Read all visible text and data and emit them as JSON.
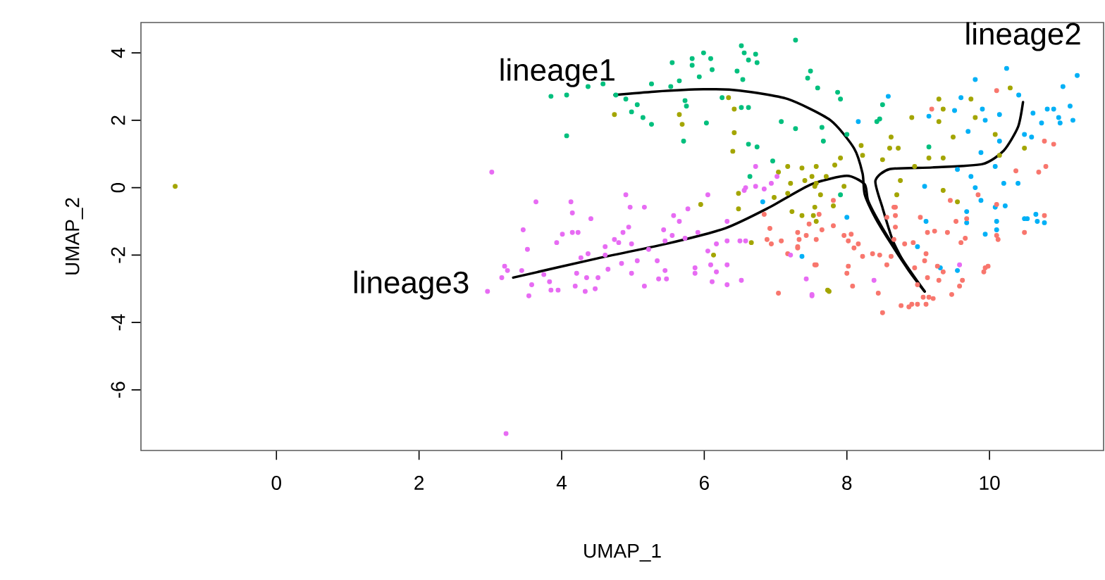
{
  "chart_data": {
    "type": "scatter",
    "xlabel": "UMAP_1",
    "ylabel": "UMAP_2",
    "xlim": [
      -1.9,
      11.6
    ],
    "ylim": [
      -7.8,
      4.9
    ],
    "xticks": [
      0,
      2,
      4,
      6,
      8,
      10
    ],
    "yticks": [
      -6,
      -4,
      -2,
      0,
      2,
      4
    ],
    "series": [
      {
        "marker": "circle",
        "color": "#00BF7D",
        "x": [
          3.85,
          4.07,
          4.37,
          4.58,
          4.76,
          4.9,
          5.06,
          5.14,
          5.26,
          4.98,
          5.26,
          5.53,
          5.65,
          5.55,
          5.83,
          5.83,
          5.99,
          6.09,
          6.11,
          5.93,
          5.73,
          5.75,
          6.03,
          5.71,
          4.07,
          6.25,
          6.52,
          6.56,
          6.62,
          6.72,
          6.74,
          6.46,
          6.54,
          6.52,
          6.62,
          7.08,
          7.28,
          6.62,
          6.74,
          6.96,
          7.28,
          7.49,
          7.45,
          7.59,
          7.65,
          6.64,
          7.87,
          7.91,
          8.5,
          8.46,
          8.42,
          8.0,
          7.67,
          9.15,
          7.91
        ],
        "values": [
          2.71,
          2.75,
          3.0,
          3.08,
          2.75,
          2.63,
          2.46,
          2.08,
          1.88,
          2.25,
          3.08,
          3.0,
          3.17,
          3.71,
          3.83,
          3.63,
          4.0,
          3.83,
          3.5,
          3.29,
          2.58,
          2.42,
          1.92,
          1.38,
          1.54,
          2.67,
          4.21,
          4.0,
          3.79,
          3.96,
          3.71,
          3.46,
          3.21,
          2.38,
          2.38,
          1.96,
          1.75,
          1.29,
          1.21,
          0.79,
          4.38,
          3.46,
          3.25,
          2.96,
          1.79,
          0.33,
          2.83,
          2.63,
          2.46,
          2.04,
          1.96,
          1.58,
          1.38,
          1.21,
          -0.21
        ]
      },
      {
        "marker": "circle",
        "color": "#A3A500",
        "x": [
          4.74,
          5.65,
          5.69,
          6.42,
          6.4,
          6.34,
          6.42,
          7.17,
          7.37,
          7.57,
          7.04,
          7.51,
          5.95,
          6.13,
          6.48,
          6.48,
          6.66,
          6.98,
          7.21,
          7.17,
          7.23,
          7.41,
          7.55,
          7.37,
          7.53,
          7.63,
          7.73,
          7.55,
          7.57,
          7.81,
          7.75,
          9.55,
          8.2,
          8.22,
          8.6,
          8.62,
          8.72,
          8.5,
          9.29,
          9.35,
          9.29,
          9.49,
          9.35,
          9.15,
          8.91,
          9.74,
          10.29,
          10.08,
          9.8,
          7.91,
          7.83,
          7.71,
          7.57,
          7.96,
          8.75,
          8.95,
          9.35,
          8.7,
          10.49,
          10.14,
          -1.42
        ],
        "values": [
          2.17,
          2.17,
          1.88,
          1.63,
          1.08,
          2.67,
          2.33,
          0.63,
          0.58,
          0.63,
          0.46,
          0.33,
          -0.5,
          -2.0,
          -0.17,
          -0.63,
          -1.63,
          -0.29,
          0.13,
          -0.17,
          -0.71,
          0.21,
          0.04,
          -0.83,
          -0.83,
          -0.21,
          -3.04,
          -0.58,
          -1.0,
          -0.54,
          -3.08,
          -0.42,
          1.25,
          0.96,
          1.17,
          1.5,
          1.17,
          0.83,
          2.63,
          2.33,
          1.96,
          1.5,
          0.88,
          0.88,
          2.08,
          2.63,
          2.96,
          1.58,
          2.08,
          0.88,
          0.67,
          0.33,
          0.13,
          0.04,
          0.21,
          0.63,
          -0.08,
          -0.21,
          1.17,
          0.96,
          0.04
        ]
      },
      {
        "marker": "circle",
        "color": "#00B0F6",
        "x": [
          9.8,
          10.24,
          11.23,
          11.03,
          8.58,
          8.16,
          9.6,
          9.51,
          9.9,
          10.14,
          9.94,
          10.41,
          10.61,
          10.81,
          10.9,
          11.13,
          11.17,
          10.99,
          10.73,
          10.59,
          10.49,
          9.7,
          10.14,
          9.88,
          10.08,
          9.74,
          9.55,
          10.2,
          10.4,
          9.09,
          9.8,
          9.88,
          9.68,
          10.49,
          10.67,
          10.77,
          8.0,
          10.1,
          10.97,
          9.15,
          9.11,
          9.68,
          10.08,
          10.22,
          10.53,
          10.65,
          9.94,
          10.1,
          7.37,
          8.99,
          9.31,
          9.55,
          6.82
        ],
        "values": [
          3.21,
          3.54,
          3.33,
          3.0,
          2.71,
          1.96,
          2.67,
          2.29,
          2.33,
          2.17,
          2.0,
          2.75,
          2.21,
          2.33,
          2.33,
          2.42,
          2.0,
          1.92,
          1.92,
          1.5,
          1.58,
          1.67,
          1.38,
          1.04,
          0.63,
          0.33,
          0.54,
          0.13,
          0.13,
          0.04,
          0.0,
          -0.38,
          -0.71,
          -0.92,
          -1.0,
          -1.04,
          -0.88,
          -1.0,
          2.08,
          2.12,
          -1.0,
          -1.04,
          -0.58,
          -0.54,
          -0.92,
          -0.79,
          -1.38,
          -1.25,
          -2.04,
          -1.75,
          -2.38,
          -2.46,
          -0.42
        ]
      },
      {
        "marker": "circle",
        "color": "#F8766D",
        "x": [
          7.31,
          7.43,
          7.33,
          7.31,
          7.57,
          7.65,
          7.81,
          7.47,
          7.96,
          8.06,
          8.02,
          8.16,
          8.1,
          8.22,
          8.36,
          8.46,
          8.62,
          7.57,
          8.02,
          8.0,
          8.08,
          8.56,
          8.68,
          8.68,
          8.56,
          8.68,
          8.66,
          8.81,
          8.93,
          9.11,
          9.09,
          8.95,
          9.13,
          8.99,
          9.07,
          9.15,
          9.21,
          8.91,
          8.99,
          8.76,
          8.87,
          9.11,
          8.5,
          8.44,
          9.27,
          9.35,
          9.29,
          9.47,
          9.62,
          9.58,
          9.23,
          9.41,
          9.53,
          9.68,
          9.6,
          9.66,
          9.94,
          9.98,
          9.92,
          10.1,
          10.12,
          10.49,
          10.77,
          10.1,
          9.45,
          9.03,
          9.13,
          6.84,
          6.92,
          6.88,
          6.94,
          7.08,
          7.17,
          7.31,
          7.55,
          7.04,
          10.1,
          9.19,
          10.77,
          10.9,
          10.69,
          10.79,
          10.37,
          9.84,
          7.81,
          7.61,
          8.66
        ],
        "values": [
          -1.33,
          -1.42,
          -1.54,
          -1.79,
          -1.54,
          -1.25,
          -1.13,
          -1.08,
          -1.42,
          -1.38,
          -1.58,
          -1.67,
          -1.79,
          -2.04,
          -1.96,
          -2.0,
          -2.04,
          -2.29,
          -2.33,
          -2.54,
          -2.92,
          -2.29,
          -0.58,
          -0.83,
          -0.88,
          -1.17,
          -1.54,
          -1.67,
          -1.63,
          -1.96,
          -2.17,
          -2.38,
          -2.67,
          -2.88,
          -3.25,
          -3.25,
          -3.29,
          -3.46,
          -3.46,
          -3.5,
          -3.54,
          -3.46,
          -3.71,
          -3.13,
          -2.33,
          -2.5,
          -2.75,
          -3.17,
          -2.75,
          -2.92,
          -1.29,
          -1.33,
          -1.0,
          -0.92,
          -1.63,
          -1.5,
          -2.38,
          -2.33,
          -2.5,
          -1.42,
          -1.54,
          -1.33,
          -0.83,
          -0.5,
          -0.38,
          -0.88,
          -1.33,
          -0.79,
          -1.21,
          -1.54,
          -1.67,
          -1.58,
          -1.96,
          -1.75,
          -2.29,
          -3.13,
          2.88,
          2.33,
          1.38,
          1.29,
          0.46,
          0.63,
          0.5,
          -0.21,
          -0.38,
          -0.79,
          -0.58
        ]
      },
      {
        "marker": "circle",
        "color": "#E76BF3",
        "x": [
          3.02,
          3.64,
          3.46,
          3.52,
          3.2,
          3.24,
          3.16,
          2.96,
          3.44,
          3.58,
          3.54,
          3.75,
          3.83,
          3.85,
          3.95,
          3.93,
          4.01,
          4.15,
          4.23,
          4.13,
          4.15,
          4.41,
          4.27,
          4.37,
          4.21,
          4.19,
          4.35,
          4.33,
          4.47,
          4.51,
          4.61,
          4.61,
          4.65,
          4.74,
          4.8,
          4.86,
          4.84,
          4.9,
          4.96,
          4.94,
          4.98,
          4.98,
          5.16,
          5.06,
          5.16,
          5.22,
          5.34,
          5.36,
          5.43,
          5.45,
          5.45,
          5.47,
          5.57,
          5.65,
          5.55,
          5.73,
          5.77,
          5.87,
          5.87,
          5.91,
          6.05,
          6.05,
          6.09,
          6.11,
          6.17,
          6.17,
          6.32,
          6.32,
          6.32,
          6.32,
          6.52,
          6.5,
          6.58,
          6.56,
          6.72,
          6.84,
          7.21,
          7.43,
          7.51,
          8.38,
          9.58,
          7.51,
          3.22,
          6.72,
          7.02,
          6.94,
          6.58
        ],
        "values": [
          0.46,
          -0.42,
          -1.25,
          -1.83,
          -2.33,
          -2.46,
          -2.67,
          -3.08,
          -2.46,
          -2.88,
          -3.21,
          -2.58,
          -2.79,
          -3.04,
          -3.04,
          -1.63,
          -1.38,
          -1.33,
          -1.33,
          -0.42,
          -0.75,
          -0.92,
          -2.08,
          -1.96,
          -2.54,
          -2.92,
          -2.67,
          -3.08,
          -3.0,
          -2.67,
          -1.75,
          -2.0,
          -2.42,
          -1.54,
          -1.63,
          -1.33,
          -2.25,
          -0.21,
          -0.58,
          -1.17,
          -1.67,
          -2.54,
          -0.58,
          -2.17,
          -2.92,
          -1.83,
          -2.17,
          -2.71,
          -1.25,
          -1.58,
          -2.46,
          -2.71,
          -0.83,
          -1.0,
          -1.42,
          -1.5,
          -0.63,
          -2.38,
          -2.54,
          -1.33,
          -0.21,
          -1.88,
          -2.29,
          -2.79,
          -2.5,
          -1.67,
          -1.58,
          -2.29,
          -1.0,
          -2.88,
          -2.75,
          -1.58,
          -1.58,
          -0.08,
          0.04,
          -0.04,
          -2.0,
          -2.71,
          -3.21,
          -2.75,
          -2.29,
          -3.17,
          -7.3,
          0.63,
          0.33,
          0.13,
          0.0
        ]
      },
      {
        "type": "line",
        "marker": "none",
        "name": "lineage1",
        "color": "#000000",
        "x": [
          9.09,
          8.85,
          8.6,
          8.4,
          8.25,
          8.22,
          8.1,
          7.77,
          7.17,
          6.5,
          5.99,
          5.3,
          4.74
        ],
        "values": [
          -3.08,
          -2.4,
          -1.6,
          -0.9,
          -0.2,
          0.42,
          1.17,
          2.0,
          2.63,
          2.88,
          2.92,
          2.85,
          2.75
        ]
      },
      {
        "type": "line",
        "marker": "none",
        "name": "lineage2",
        "color": "#000000",
        "x": [
          9.09,
          8.85,
          8.65,
          8.5,
          8.4,
          8.6,
          9.2,
          9.9,
          10.2,
          10.4,
          10.47
        ],
        "values": [
          -3.08,
          -2.4,
          -1.6,
          -0.6,
          0.2,
          0.55,
          0.6,
          0.7,
          1.1,
          1.8,
          2.54
        ]
      },
      {
        "type": "line",
        "marker": "none",
        "name": "lineage3",
        "color": "#000000",
        "x": [
          9.09,
          8.8,
          8.5,
          8.3,
          8.25,
          8.0,
          7.5,
          6.9,
          6.3,
          5.5,
          4.5,
          3.32
        ],
        "values": [
          -3.08,
          -2.2,
          -1.2,
          -0.4,
          0.1,
          0.35,
          0.1,
          -0.6,
          -1.2,
          -1.65,
          -2.1,
          -2.67
        ]
      }
    ]
  }
}
